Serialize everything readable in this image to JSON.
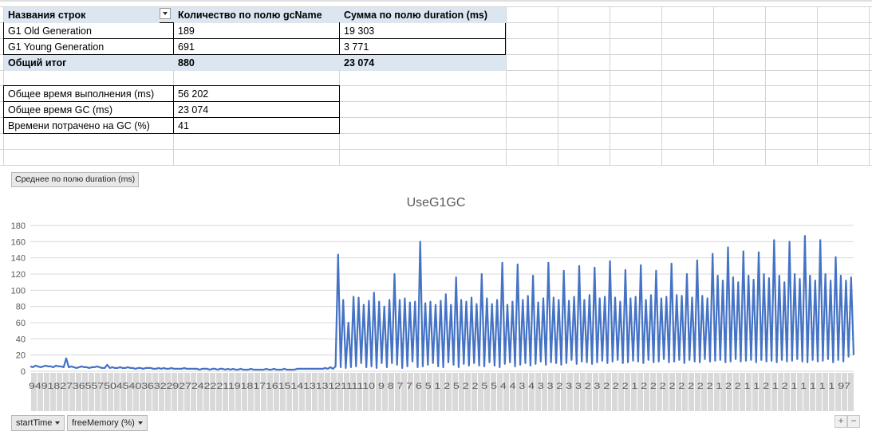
{
  "pivot": {
    "headers": [
      "Названия строк",
      "Количество по полю gcName",
      "Сумма по полю duration (ms)"
    ],
    "rows": [
      {
        "name": "G1 Old Generation",
        "count": "189",
        "sum": "19 303"
      },
      {
        "name": "G1 Young Generation",
        "count": "691",
        "sum": "3 771"
      }
    ],
    "total": {
      "name": "Общий итог",
      "count": "880",
      "sum": "23 074"
    }
  },
  "stats": [
    {
      "label": "Общее время выполнения (ms)",
      "value": "56 202"
    },
    {
      "label": "Общее время GC (ms)",
      "value": "23 074"
    },
    {
      "label": "Времени потрачено на GC (%)",
      "value": "41"
    }
  ],
  "chart_button": "Среднее по полю duration (ms)",
  "chart_title": "UseG1GC",
  "filters": [
    {
      "label": "startTime",
      "icon": "dropdown-arrow-icon"
    },
    {
      "label": "freeMemory (%)",
      "icon": "dropdown-arrow-icon"
    }
  ],
  "corner_buttons": [
    "+",
    "−"
  ],
  "colors": {
    "series": "#4472c4",
    "header_fill": "#dce6f1",
    "gridline": "#d9d9d9",
    "axis_text": "#595959"
  },
  "chart_data": {
    "type": "line",
    "title": "UseG1GC",
    "xlabel": "",
    "ylabel": "",
    "ylim": [
      0,
      180
    ],
    "yticks": [
      0,
      20,
      40,
      60,
      80,
      100,
      120,
      140,
      160,
      180
    ],
    "x_tick_labels_row1": "94918273655750454036322927242221191817161514131312111110 9 8 7 7 6 5 1 2 5 2 2 5 5 4 4 3 4 3 3 2 3 3 2 3 2 2 2 1 2 2 2 2 2 2 2 2 1 2 2 1 1 2 1 2 1 1 1 1 1 97",
    "grid": "horizontal",
    "series": [
      {
        "values": [
          6,
          5,
          7,
          6,
          5,
          6,
          7,
          6,
          6,
          5,
          7,
          6,
          6,
          5,
          16,
          5,
          6,
          5,
          4,
          5,
          6,
          5,
          5,
          4,
          5,
          5,
          6,
          5,
          4,
          4,
          8,
          4,
          5,
          4,
          4,
          5,
          4,
          4,
          5,
          4,
          4,
          3,
          4,
          4,
          3,
          4,
          4,
          4,
          3,
          3,
          4,
          3,
          4,
          3,
          3,
          4,
          3,
          3,
          3,
          3,
          4,
          3,
          3,
          3,
          3,
          3,
          2,
          3,
          3,
          3,
          2,
          3,
          3,
          2,
          3,
          3,
          2,
          3,
          2,
          3,
          2,
          2,
          3,
          2,
          2,
          2,
          3,
          2,
          2,
          2,
          2,
          2,
          3,
          2,
          2,
          3,
          2,
          2,
          2,
          3,
          2,
          2,
          2,
          2,
          3,
          3,
          3,
          3,
          3,
          3,
          3,
          3,
          3,
          3,
          3,
          4,
          3,
          5,
          3,
          6,
          144,
          5,
          88,
          4,
          60,
          5,
          92,
          6,
          91,
          10,
          82,
          5,
          87,
          6,
          97,
          4,
          86,
          10,
          80,
          5,
          88,
          10,
          120,
          8,
          88,
          4,
          90,
          6,
          85,
          12,
          86,
          5,
          160,
          6,
          84,
          8,
          86,
          10,
          82,
          6,
          87,
          5,
          95,
          11,
          82,
          8,
          116,
          5,
          88,
          9,
          86,
          7,
          91,
          10,
          83,
          7,
          120,
          6,
          90,
          11,
          83,
          7,
          88,
          5,
          134,
          9,
          82,
          11,
          86,
          6,
          132,
          8,
          88,
          10,
          93,
          7,
          118,
          9,
          85,
          12,
          90,
          8,
          134,
          11,
          91,
          10,
          88,
          8,
          124,
          10,
          87,
          14,
          92,
          9,
          130,
          12,
          88,
          11,
          94,
          9,
          128,
          11,
          90,
          13,
          92,
          10,
          136,
          12,
          91,
          14,
          86,
          10,
          125,
          11,
          90,
          13,
          92,
          12,
          131,
          10,
          88,
          14,
          94,
          11,
          124,
          12,
          90,
          15,
          92,
          11,
          133,
          12,
          94,
          14,
          93,
          10,
          120,
          14,
          91,
          12,
          137,
          11,
          93,
          15,
          90,
          12,
          145,
          13,
          118,
          14,
          112,
          11,
          153,
          12,
          116,
          15,
          110,
          12,
          148,
          13,
          118,
          14,
          113,
          11,
          147,
          14,
          120,
          12,
          115,
          13,
          162,
          11,
          118,
          14,
          110,
          12,
          160,
          13,
          120,
          15,
          114,
          12,
          167,
          11,
          118,
          14,
          112,
          12,
          162,
          13,
          120,
          15,
          112,
          11,
          141,
          14,
          118,
          12,
          112,
          18,
          116,
          20
        ]
      }
    ]
  }
}
